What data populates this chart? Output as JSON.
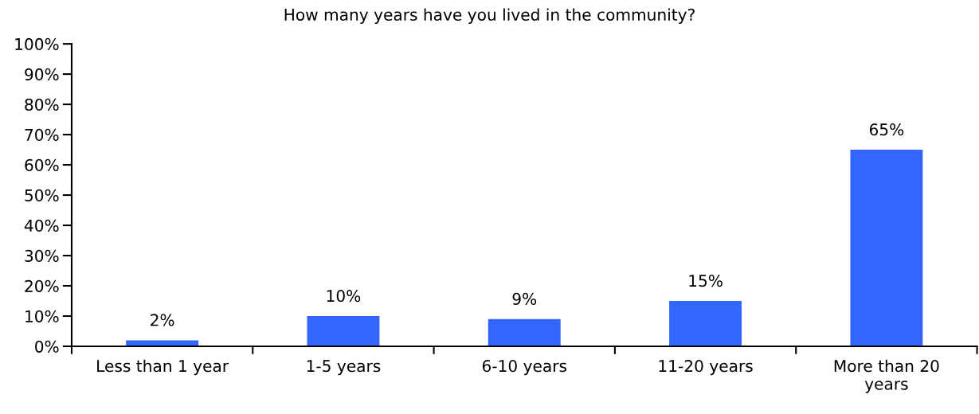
{
  "chart_data": {
    "type": "bar",
    "title": "How many years have you lived in the community?",
    "categories": [
      "Less than 1 year",
      "1-5 years",
      "6-10 years",
      "11-20 years",
      "More than 20 years"
    ],
    "values": [
      2,
      10,
      9,
      15,
      65
    ],
    "value_labels": [
      "2%",
      "10%",
      "9%",
      "15%",
      "65%"
    ],
    "color": "#3366ff",
    "ylim": [
      0,
      100
    ],
    "yticks": [
      {
        "value": 0,
        "label": "0%"
      },
      {
        "value": 10,
        "label": "10%"
      },
      {
        "value": 20,
        "label": "20%"
      },
      {
        "value": 30,
        "label": "30%"
      },
      {
        "value": 40,
        "label": "40%"
      },
      {
        "value": 50,
        "label": "50%"
      },
      {
        "value": 60,
        "label": "60%"
      },
      {
        "value": 70,
        "label": "70%"
      },
      {
        "value": 80,
        "label": "80%"
      },
      {
        "value": 90,
        "label": "90%"
      },
      {
        "value": 100,
        "label": "100%"
      }
    ],
    "grid": false,
    "legend": false
  }
}
